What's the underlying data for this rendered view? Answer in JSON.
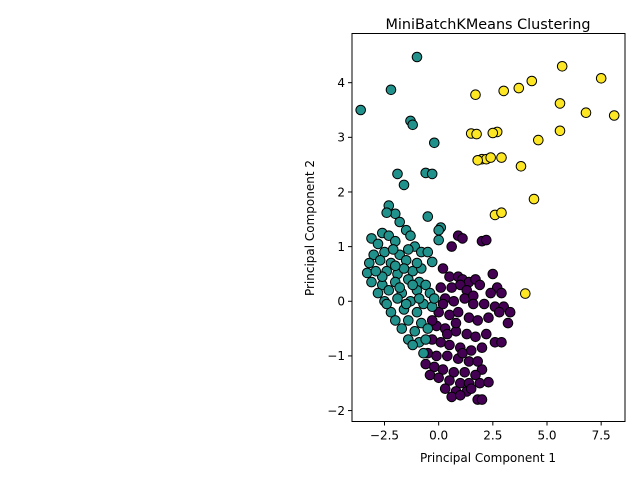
{
  "chart_data": {
    "type": "scatter",
    "title": "MiniBatchKMeans Clustering",
    "xlabel": "Principal Component 1",
    "ylabel": "Principal Component 2",
    "xlim": [
      -4.0,
      8.6
    ],
    "ylim": [
      -2.2,
      4.9
    ],
    "xticks": [
      -2.5,
      0.0,
      2.5,
      5.0,
      7.5
    ],
    "xtick_labels": [
      "−2.5",
      "0.0",
      "2.5",
      "5.0",
      "7.5"
    ],
    "yticks": [
      -2,
      -1,
      0,
      1,
      2,
      3,
      4
    ],
    "ytick_labels": [
      "−2",
      "−1",
      "0",
      "1",
      "2",
      "3",
      "4"
    ],
    "grid": false,
    "legend": "none",
    "colors": {
      "cluster_0": "#440154",
      "cluster_1": "#21918c",
      "cluster_2": "#fde725",
      "edge": "#000000"
    },
    "series": [
      {
        "cluster": 0,
        "points": [
          [
            0.2,
            0.6
          ],
          [
            0.6,
            1.0
          ],
          [
            0.9,
            1.2
          ],
          [
            1.1,
            1.15
          ],
          [
            2.0,
            1.1
          ],
          [
            2.2,
            1.12
          ],
          [
            0.5,
            0.45
          ],
          [
            0.9,
            0.45
          ],
          [
            1.1,
            0.4
          ],
          [
            1.4,
            0.35
          ],
          [
            1.7,
            0.4
          ],
          [
            2.5,
            0.5
          ],
          [
            0.1,
            0.25
          ],
          [
            0.6,
            0.25
          ],
          [
            1.0,
            0.3
          ],
          [
            1.3,
            0.2
          ],
          [
            1.9,
            0.3
          ],
          [
            2.7,
            0.25
          ],
          [
            2.9,
            0.15
          ],
          [
            0.3,
            0.05
          ],
          [
            0.7,
            0.0
          ],
          [
            1.2,
            0.05
          ],
          [
            1.6,
            0.1
          ],
          [
            2.1,
            -0.05
          ],
          [
            2.6,
            -0.1
          ],
          [
            3.0,
            -0.1
          ],
          [
            3.3,
            -0.2
          ],
          [
            0.0,
            -0.2
          ],
          [
            0.5,
            -0.25
          ],
          [
            0.9,
            -0.2
          ],
          [
            1.4,
            -0.3
          ],
          [
            1.8,
            -0.35
          ],
          [
            2.3,
            -0.3
          ],
          [
            2.8,
            -0.2
          ],
          [
            3.2,
            -0.4
          ],
          [
            -0.1,
            -0.45
          ],
          [
            0.3,
            -0.5
          ],
          [
            0.8,
            -0.55
          ],
          [
            1.3,
            -0.6
          ],
          [
            1.7,
            -0.65
          ],
          [
            2.2,
            -0.6
          ],
          [
            2.6,
            -0.75
          ],
          [
            2.9,
            -0.75
          ],
          [
            -0.3,
            -0.7
          ],
          [
            0.1,
            -0.75
          ],
          [
            0.5,
            -0.8
          ],
          [
            1.0,
            -0.85
          ],
          [
            1.5,
            -0.9
          ],
          [
            2.0,
            -0.85
          ],
          [
            -0.5,
            -0.95
          ],
          [
            -0.1,
            -1.0
          ],
          [
            0.4,
            -1.0
          ],
          [
            0.9,
            -1.05
          ],
          [
            1.4,
            -1.1
          ],
          [
            2.0,
            -1.25
          ],
          [
            -0.6,
            -1.15
          ],
          [
            -0.2,
            -1.2
          ],
          [
            0.2,
            -1.25
          ],
          [
            0.7,
            -1.3
          ],
          [
            1.2,
            -1.3
          ],
          [
            1.7,
            -1.35
          ],
          [
            -0.4,
            -1.35
          ],
          [
            0.0,
            -1.4
          ],
          [
            0.5,
            -1.45
          ],
          [
            1.0,
            -1.5
          ],
          [
            1.4,
            -1.5
          ],
          [
            1.9,
            -1.5
          ],
          [
            2.3,
            -1.48
          ],
          [
            0.3,
            -1.6
          ],
          [
            0.8,
            -1.65
          ],
          [
            1.3,
            -1.65
          ],
          [
            0.6,
            -1.75
          ],
          [
            1.0,
            -1.72
          ],
          [
            1.8,
            -1.8
          ],
          [
            2.0,
            -1.8
          ],
          [
            1.5,
            -1.6
          ],
          [
            0.2,
            -0.05
          ],
          [
            0.8,
            -0.4
          ],
          [
            1.6,
            -0.05
          ],
          [
            2.4,
            0.15
          ],
          [
            -0.3,
            -0.35
          ],
          [
            0.4,
            -0.6
          ],
          [
            1.1,
            -0.95
          ],
          [
            1.8,
            -1.1
          ]
        ]
      },
      {
        "cluster": 1,
        "points": [
          [
            -1.0,
            4.47
          ],
          [
            -3.6,
            3.5
          ],
          [
            -2.2,
            3.87
          ],
          [
            -1.3,
            3.3
          ],
          [
            -1.2,
            3.23
          ],
          [
            -0.2,
            2.9
          ],
          [
            -1.9,
            2.33
          ],
          [
            -0.6,
            2.35
          ],
          [
            -0.3,
            2.33
          ],
          [
            -1.6,
            2.13
          ],
          [
            -2.3,
            1.75
          ],
          [
            -2.0,
            1.6
          ],
          [
            -0.5,
            1.55
          ],
          [
            -2.4,
            1.62
          ],
          [
            -1.8,
            1.45
          ],
          [
            -1.5,
            1.3
          ],
          [
            0.1,
            1.35
          ],
          [
            0.0,
            1.3
          ],
          [
            -3.1,
            1.15
          ],
          [
            -2.6,
            1.25
          ],
          [
            -2.3,
            1.2
          ],
          [
            -1.3,
            1.2
          ],
          [
            0.0,
            1.12
          ],
          [
            -2.8,
            1.05
          ],
          [
            -2.0,
            1.1
          ],
          [
            -1.1,
            1.0
          ],
          [
            -3.0,
            0.85
          ],
          [
            -2.5,
            0.9
          ],
          [
            -1.8,
            0.85
          ],
          [
            -0.8,
            0.9
          ],
          [
            -0.5,
            0.9
          ],
          [
            -3.2,
            0.7
          ],
          [
            -2.7,
            0.75
          ],
          [
            -2.2,
            0.7
          ],
          [
            -1.5,
            0.75
          ],
          [
            -0.3,
            0.72
          ],
          [
            -3.3,
            0.52
          ],
          [
            -2.4,
            0.55
          ],
          [
            -1.9,
            0.5
          ],
          [
            -1.2,
            0.55
          ],
          [
            -3.1,
            0.35
          ],
          [
            -2.6,
            0.3
          ],
          [
            -2.0,
            0.35
          ],
          [
            -1.4,
            0.4
          ],
          [
            -0.9,
            0.35
          ],
          [
            -0.6,
            0.3
          ],
          [
            -2.8,
            0.15
          ],
          [
            -2.3,
            0.2
          ],
          [
            -1.7,
            0.15
          ],
          [
            -1.0,
            0.2
          ],
          [
            -0.4,
            0.15
          ],
          [
            -2.5,
            0.0
          ],
          [
            -1.9,
            0.05
          ],
          [
            -1.3,
            0.0
          ],
          [
            -0.7,
            -0.05
          ],
          [
            -2.2,
            -0.2
          ],
          [
            -1.6,
            -0.15
          ],
          [
            -1.0,
            -0.2
          ],
          [
            -0.3,
            -0.1
          ],
          [
            -2.0,
            -0.35
          ],
          [
            -1.4,
            -0.35
          ],
          [
            -0.8,
            -0.4
          ],
          [
            -1.7,
            -0.5
          ],
          [
            -1.1,
            -0.55
          ],
          [
            -0.5,
            -0.5
          ],
          [
            -1.4,
            -0.7
          ],
          [
            -0.9,
            -0.75
          ],
          [
            -0.6,
            -0.7
          ],
          [
            -1.2,
            -0.8
          ],
          [
            -0.7,
            -0.95
          ],
          [
            -2.6,
            0.45
          ],
          [
            -1.6,
            0.6
          ],
          [
            -0.8,
            0.6
          ],
          [
            -2.1,
            0.95
          ],
          [
            -1.4,
            0.95
          ],
          [
            -2.9,
            0.55
          ],
          [
            -1.8,
            0.25
          ],
          [
            -0.2,
            0.05
          ],
          [
            -1.5,
            -0.05
          ],
          [
            -2.4,
            -0.05
          ],
          [
            -0.9,
            0.05
          ],
          [
            -1.2,
            0.3
          ],
          [
            -2.0,
            0.65
          ],
          [
            -1.0,
            0.7
          ]
        ]
      },
      {
        "cluster": 2,
        "points": [
          [
            5.7,
            4.3
          ],
          [
            7.5,
            4.08
          ],
          [
            4.3,
            4.03
          ],
          [
            3.7,
            3.9
          ],
          [
            3.0,
            3.85
          ],
          [
            1.7,
            3.78
          ],
          [
            5.6,
            3.62
          ],
          [
            6.8,
            3.45
          ],
          [
            8.1,
            3.4
          ],
          [
            5.6,
            3.12
          ],
          [
            2.7,
            3.1
          ],
          [
            2.5,
            3.08
          ],
          [
            1.5,
            3.07
          ],
          [
            1.75,
            3.06
          ],
          [
            4.6,
            2.95
          ],
          [
            2.0,
            2.6
          ],
          [
            2.2,
            2.6
          ],
          [
            1.8,
            2.58
          ],
          [
            2.4,
            2.63
          ],
          [
            2.9,
            2.63
          ],
          [
            3.8,
            2.47
          ],
          [
            4.4,
            1.87
          ],
          [
            2.6,
            1.58
          ],
          [
            2.9,
            1.62
          ],
          [
            4.0,
            0.14
          ]
        ]
      }
    ]
  }
}
